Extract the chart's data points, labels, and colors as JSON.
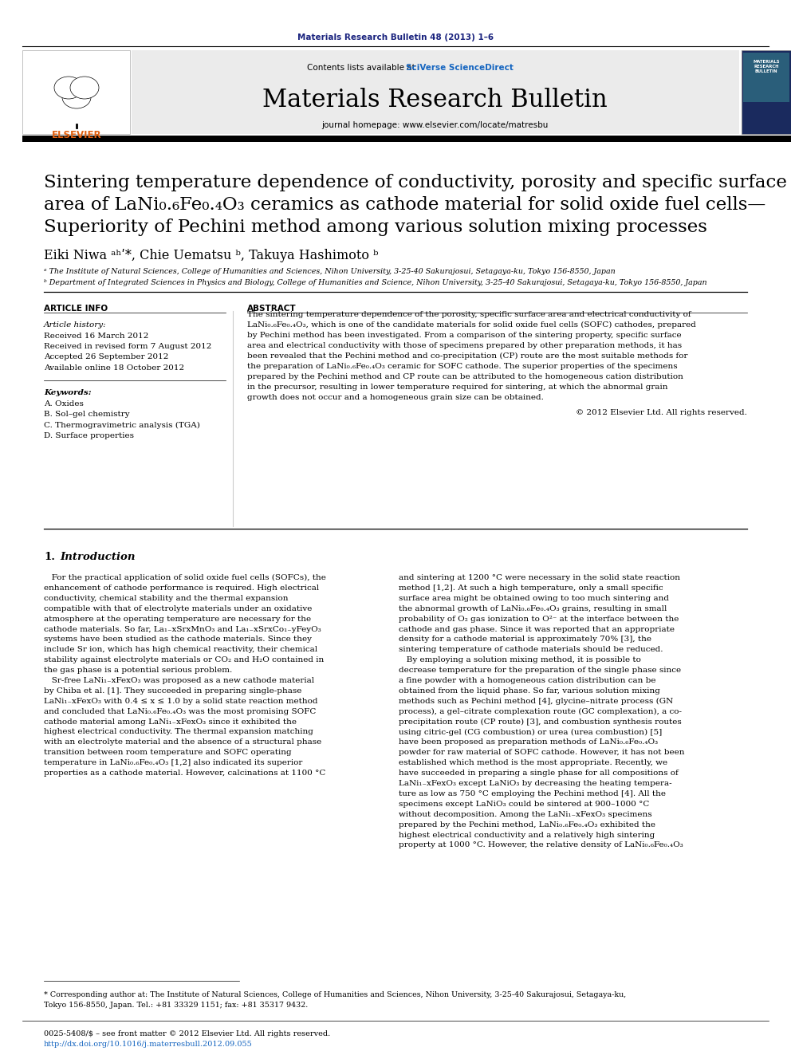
{
  "page_bg": "#ffffff",
  "header_journal_text": "Materials Research Bulletin 48 (2013) 1–6",
  "header_journal_color": "#1a237e",
  "journal_name": "Materials Research Bulletin",
  "contents_text": "Contents lists available at ",
  "sciverse_text": "SciVerse ScienceDirect",
  "journal_homepage": "journal homepage: www.elsevier.com/locate/matresbu",
  "title_line1": "Sintering temperature dependence of conductivity, porosity and specific surface",
  "title_line2": "area of LaNi₀.₆Fe₀.₄O₃ ceramics as cathode material for solid oxide fuel cells—",
  "title_line3": "Superiority of Pechini method among various solution mixing processes",
  "authors": "Eiki Niwa ᵃʰʹ*, Chie Uematsu ᵇ, Takuya Hashimoto ᵇ",
  "affil_a": "ᵃ The Institute of Natural Sciences, College of Humanities and Sciences, Nihon University, 3-25-40 Sakurajosui, Setagaya-ku, Tokyo 156-8550, Japan",
  "affil_b": "ᵇ Department of Integrated Sciences in Physics and Biology, College of Humanities and Science, Nihon University, 3-25-40 Sakurajosui, Setagaya-ku, Tokyo 156-8550, Japan",
  "article_info_header": "ARTICLE INFO",
  "abstract_header": "ABSTRACT",
  "article_history_label": "Article history:",
  "received": "Received 16 March 2012",
  "revised": "Received in revised form 7 August 2012",
  "accepted": "Accepted 26 September 2012",
  "online": "Available online 18 October 2012",
  "keywords_label": "Keywords:",
  "kw1": "A. Oxides",
  "kw2": "B. Sol–gel chemistry",
  "kw3": "C. Thermogravimetric analysis (TGA)",
  "kw4": "D. Surface properties",
  "abstract_lines": [
    "The sintering temperature dependence of the porosity, specific surface area and electrical conductivity of",
    "LaNi₀.₆Fe₀.₄O₃, which is one of the candidate materials for solid oxide fuel cells (SOFC) cathodes, prepared",
    "by Pechini method has been investigated. From a comparison of the sintering property, specific surface",
    "area and electrical conductivity with those of specimens prepared by other preparation methods, it has",
    "been revealed that the Pechini method and co-precipitation (CP) route are the most suitable methods for",
    "the preparation of LaNi₀.₆Fe₀.₄O₃ ceramic for SOFC cathode. The superior properties of the specimens",
    "prepared by the Pechini method and CP route can be attributed to the homogeneous cation distribution",
    "in the precursor, resulting in lower temperature required for sintering, at which the abnormal grain",
    "growth does not occur and a homogeneous grain size can be obtained."
  ],
  "copyright": "© 2012 Elsevier Ltd. All rights reserved.",
  "col1_lines": [
    "   For the practical application of solid oxide fuel cells (SOFCs), the",
    "enhancement of cathode performance is required. High electrical",
    "conductivity, chemical stability and the thermal expansion",
    "compatible with that of electrolyte materials under an oxidative",
    "atmosphere at the operating temperature are necessary for the",
    "cathode materials. So far, La₁₋xSrxMnO₃ and La₁₋xSrxCo₁₋yFeyO₃",
    "systems have been studied as the cathode materials. Since they",
    "include Sr ion, which has high chemical reactivity, their chemical",
    "stability against electrolyte materials or CO₂ and H₂O contained in",
    "the gas phase is a potential serious problem.",
    "   Sr-free LaNi₁₋xFexO₃ was proposed as a new cathode material",
    "by Chiba et al. [1]. They succeeded in preparing single-phase",
    "LaNi₁₋xFexO₃ with 0.4 ≤ x ≤ 1.0 by a solid state reaction method",
    "and concluded that LaNi₀.₆Fe₀.₄O₃ was the most promising SOFC",
    "cathode material among LaNi₁₋xFexO₃ since it exhibited the",
    "highest electrical conductivity. The thermal expansion matching",
    "with an electrolyte material and the absence of a structural phase",
    "transition between room temperature and SOFC operating",
    "temperature in LaNi₀.₆Fe₀.₄O₃ [1,2] also indicated its superior",
    "properties as a cathode material. However, calcinations at 1100 °C"
  ],
  "col2_lines": [
    "and sintering at 1200 °C were necessary in the solid state reaction",
    "method [1,2]. At such a high temperature, only a small specific",
    "surface area might be obtained owing to too much sintering and",
    "the abnormal growth of LaNi₀.₆Fe₀.₄O₃ grains, resulting in small",
    "probability of O₂ gas ionization to O²⁻ at the interface between the",
    "cathode and gas phase. Since it was reported that an appropriate",
    "density for a cathode material is approximately 70% [3], the",
    "sintering temperature of cathode materials should be reduced.",
    "   By employing a solution mixing method, it is possible to",
    "decrease temperature for the preparation of the single phase since",
    "a fine powder with a homogeneous cation distribution can be",
    "obtained from the liquid phase. So far, various solution mixing",
    "methods such as Pechini method [4], glycine–nitrate process (GN",
    "process), a gel–citrate complexation route (GC complexation), a co-",
    "precipitation route (CP route) [3], and combustion synthesis routes",
    "using citric-gel (CG combustion) or urea (urea combustion) [5]",
    "have been proposed as preparation methods of LaNi₀.₆Fe₀.₄O₃",
    "powder for raw material of SOFC cathode. However, it has not been",
    "established which method is the most appropriate. Recently, we",
    "have succeeded in preparing a single phase for all compositions of",
    "LaNi₁₋xFexO₃ except LaNiO₃ by decreasing the heating tempera-",
    "ture as low as 750 °C employing the Pechini method [4]. All the",
    "specimens except LaNiO₃ could be sintered at 900–1000 °C",
    "without decomposition. Among the LaNi₁₋xFexO₃ specimens",
    "prepared by the Pechini method, LaNi₀.₆Fe₀.₄O₃ exhibited the",
    "highest electrical conductivity and a relatively high sintering",
    "property at 1000 °C. However, the relative density of LaNi₀.₆Fe₀.₄O₃"
  ],
  "footnote_star": "* Corresponding author at: The Institute of Natural Sciences, College of Humanities and Sciences, Nihon University, 3-25-40 Sakurajosui, Setagaya-ku,",
  "footnote_star2": "Tokyo 156-8550, Japan. Tel.: +81 33329 1151; fax: +81 35317 9432.",
  "footer_text1": "0025-5408/$ – see front matter © 2012 Elsevier Ltd. All rights reserved.",
  "footer_text2": "http://dx.doi.org/10.1016/j.materresbull.2012.09.055"
}
